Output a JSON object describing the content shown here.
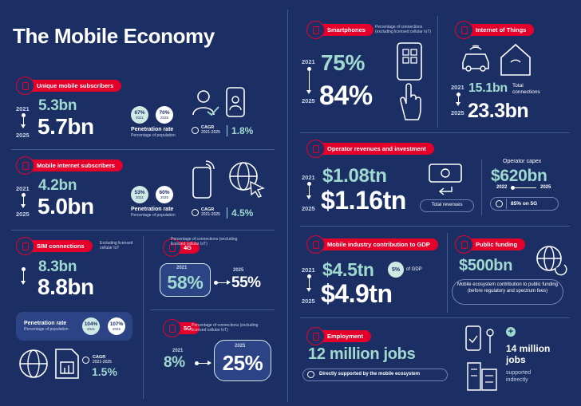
{
  "title": "The Mobile Economy",
  "colors": {
    "background": "#1c2f64",
    "accent": "#e4002b",
    "teal": "#9fd9d0"
  },
  "subscribers": {
    "label": "Unique mobile subscribers",
    "year_start": "2021",
    "year_end": "2025",
    "value_start": "5.3bn",
    "value_end": "5.7bn",
    "rate_2021": "67%",
    "rate_2021_year": "2021",
    "rate_2025": "70%",
    "rate_2025_year": "2025",
    "rate_title": "Penetration rate",
    "rate_sub": "Percentage of population",
    "cagr_label": "CAGR",
    "cagr_period": "2021-2025",
    "cagr_value": "1.8%"
  },
  "internet": {
    "label": "Mobile internet subscribers",
    "year_start": "2021",
    "year_end": "2025",
    "value_start": "4.2bn",
    "value_end": "5.0bn",
    "rate_2021": "53%",
    "rate_2021_year": "2021",
    "rate_2025": "60%",
    "rate_2025_year": "2025",
    "rate_title": "Penetration rate",
    "rate_sub": "Percentage of population",
    "cagr_label": "CAGR",
    "cagr_period": "2021-2025",
    "cagr_value": "4.5%"
  },
  "sim": {
    "label": "SIM connections",
    "note": "Excluding licensed cellular IoT",
    "value_start": "8.3bn",
    "value_end": "8.8bn",
    "rate_title": "Penetration rate",
    "rate_sub": "Percentage of population",
    "rate_2021": "104%",
    "rate_2021_year": "2021",
    "rate_2025": "107%",
    "rate_2025_year": "2025",
    "cagr_label": "CAGR",
    "cagr_period": "2021-2025",
    "cagr_value": "1.5%"
  },
  "g4": {
    "label": "4G",
    "note": "Percentage of connections (excluding licensed cellular IoT)",
    "year_start": "2021",
    "year_end": "2025",
    "value_start": "58%",
    "value_end": "55%"
  },
  "g5": {
    "label": "5G",
    "note": "Percentage of connections (excluding licensed cellular IoT)",
    "year_start": "2021",
    "year_end": "2025",
    "value_start": "8%",
    "value_end": "25%"
  },
  "smartphones": {
    "label": "Smartphones",
    "note": "Percentage of connections (excluding licensed cellular IoT)",
    "year_start": "2021",
    "year_end": "2025",
    "value_start": "75%",
    "value_end": "84%"
  },
  "iot": {
    "label": "Internet of Things",
    "year_start": "2021",
    "year_end": "2025",
    "value_start": "15.1bn",
    "value_end": "23.3bn",
    "total_label": "Total connections"
  },
  "revenues": {
    "label": "Operator revenues and investment",
    "year_start": "2021",
    "year_end": "2025",
    "value_start": "$1.08tn",
    "value_end": "$1.16tn",
    "total_label": "Total revenues",
    "capex_title": "Operator capex",
    "capex_value": "$620bn",
    "capex_from": "2022",
    "capex_to": "2025",
    "capex_5g": "85% on 5G"
  },
  "gdp": {
    "label": "Mobile industry contribution to GDP",
    "year_start": "2021",
    "year_end": "2025",
    "value_start": "$4.5tn",
    "value_end": "$4.9tn",
    "pct": "5%",
    "pct_label": "of GDP"
  },
  "funding": {
    "label": "Public funding",
    "value": "$500bn",
    "description": "Mobile ecosystem contribution to public funding (before regulatory and spectrum fees)"
  },
  "employment": {
    "label": "Employment",
    "direct_value": "12 million jobs",
    "direct_label": "Directly supported by the mobile ecosystem",
    "plus": "+",
    "indirect_value_1": "14 million",
    "indirect_value_2": "jobs",
    "indirect_label_1": "supported",
    "indirect_label_2": "indirectly"
  }
}
